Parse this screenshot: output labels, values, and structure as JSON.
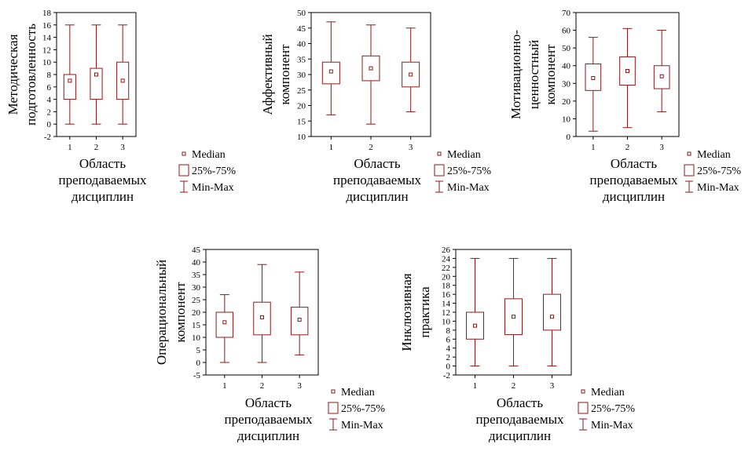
{
  "colors": {
    "box": "#8B1A1A",
    "axis": "#000000",
    "background": "#ffffff"
  },
  "legend": {
    "median": "Median",
    "box": "25%-75%",
    "whisker": "Min-Max"
  },
  "chart_data": [
    {
      "type": "boxplot",
      "ylabel": [
        "Методическая",
        "подготовленность"
      ],
      "xlabel": [
        "Область",
        "преподаваемых",
        "дисциплин"
      ],
      "categories": [
        "1",
        "2",
        "3"
      ],
      "yticks": [
        -2,
        0,
        2,
        4,
        6,
        8,
        10,
        12,
        14,
        16,
        18
      ],
      "ylim": [
        -2,
        18
      ],
      "boxes": [
        {
          "min": 0,
          "q1": 4,
          "median": 7,
          "q3": 8,
          "max": 16
        },
        {
          "min": 0,
          "q1": 4,
          "median": 8,
          "q3": 9,
          "max": 16
        },
        {
          "min": 0,
          "q1": 4,
          "median": 7,
          "q3": 10,
          "max": 16
        }
      ]
    },
    {
      "type": "boxplot",
      "ylabel": [
        "Аффективный",
        "компонент"
      ],
      "xlabel": [
        "Область",
        "преподаваемых",
        "дисциплин"
      ],
      "categories": [
        "1",
        "2",
        "3"
      ],
      "yticks": [
        10,
        15,
        20,
        25,
        30,
        35,
        40,
        45,
        50
      ],
      "ylim": [
        10,
        50
      ],
      "boxes": [
        {
          "min": 17,
          "q1": 27,
          "median": 31,
          "q3": 34,
          "max": 47
        },
        {
          "min": 14,
          "q1": 28,
          "median": 32,
          "q3": 36,
          "max": 46
        },
        {
          "min": 18,
          "q1": 26,
          "median": 30,
          "q3": 34,
          "max": 45
        }
      ]
    },
    {
      "type": "boxplot",
      "ylabel": [
        "Мотивационно-",
        "ценностный",
        "компонент"
      ],
      "xlabel": [
        "Область",
        "преподаваемых",
        "дисциплин"
      ],
      "categories": [
        "1",
        "2",
        "3"
      ],
      "yticks": [
        0,
        10,
        20,
        30,
        40,
        50,
        60,
        70
      ],
      "ylim": [
        0,
        70
      ],
      "boxes": [
        {
          "min": 3,
          "q1": 26,
          "median": 33,
          "q3": 41,
          "max": 56
        },
        {
          "min": 5,
          "q1": 29,
          "median": 37,
          "q3": 45,
          "max": 61
        },
        {
          "min": 14,
          "q1": 27,
          "median": 34,
          "q3": 40,
          "max": 60
        }
      ]
    },
    {
      "type": "boxplot",
      "ylabel": [
        "Операциональный",
        "компонент"
      ],
      "xlabel": [
        "Область",
        "преподаваемых",
        "дисциплин"
      ],
      "categories": [
        "1",
        "2",
        "3"
      ],
      "yticks": [
        -5,
        0,
        5,
        10,
        15,
        20,
        25,
        30,
        35,
        40,
        45
      ],
      "ylim": [
        -5,
        45
      ],
      "boxes": [
        {
          "min": 0,
          "q1": 10,
          "median": 16,
          "q3": 20,
          "max": 27
        },
        {
          "min": 0,
          "q1": 11,
          "median": 18,
          "q3": 24,
          "max": 39
        },
        {
          "min": 3,
          "q1": 11,
          "median": 17,
          "q3": 22,
          "max": 36
        }
      ]
    },
    {
      "type": "boxplot",
      "ylabel": [
        "Инклюзивная",
        "практика"
      ],
      "xlabel": [
        "Область",
        "преподаваемых",
        "дисциплин"
      ],
      "categories": [
        "1",
        "2",
        "3"
      ],
      "yticks": [
        -2,
        0,
        2,
        4,
        6,
        8,
        10,
        12,
        14,
        16,
        18,
        20,
        22,
        24,
        26
      ],
      "ylim": [
        -2,
        26
      ],
      "boxes": [
        {
          "min": 0,
          "q1": 6,
          "median": 9,
          "q3": 12,
          "max": 24
        },
        {
          "min": 0,
          "q1": 7,
          "median": 11,
          "q3": 15,
          "max": 24
        },
        {
          "min": 0,
          "q1": 8,
          "median": 11,
          "q3": 16,
          "max": 24
        }
      ]
    }
  ]
}
